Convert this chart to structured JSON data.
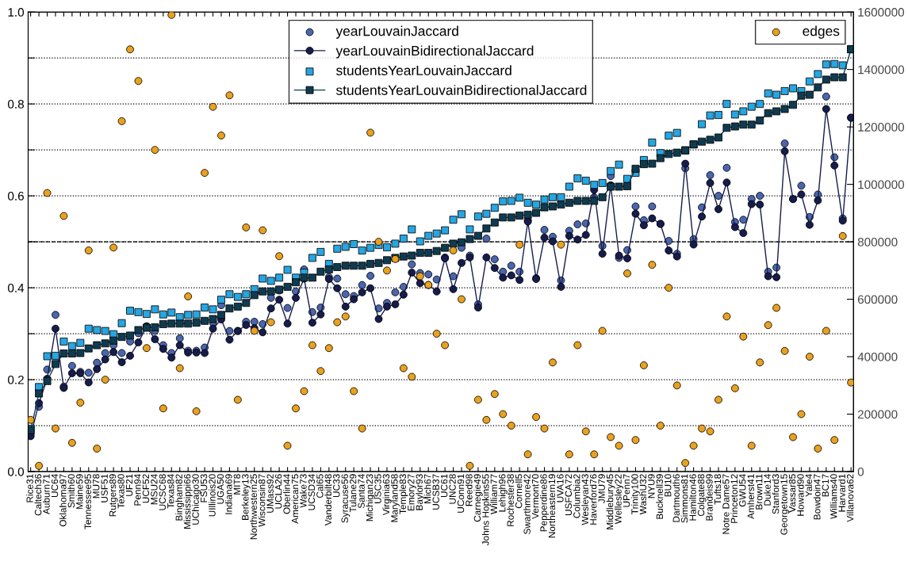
{
  "chart_data": {
    "type": "scatter",
    "categories": [
      "Rice31",
      "Caltech36",
      "Auburn71",
      "UC64",
      "Oklahoma97",
      "Smith60",
      "Maine59",
      "Tennessee95",
      "MU78",
      "USF51",
      "Rutgers89",
      "Texas80",
      "UF21",
      "Penn94",
      "UCF52",
      "MSU24",
      "UCSC68",
      "Texas84",
      "Bingham82",
      "Mississippi66",
      "UChicago30",
      "FSU53",
      "UIllinois20",
      "UGA50",
      "Indiana69",
      "MIT8",
      "Berkeley13",
      "Northwestern25",
      "Wisconsin87",
      "UMass92",
      "UCLA26",
      "Oberlin44",
      "American75",
      "Wake73",
      "UCSD34",
      "Cal65",
      "Vanderbilt48",
      "UC33",
      "Syracuse56",
      "Tulane29",
      "Santa74",
      "Michigan23",
      "USC35",
      "Virginia63",
      "Maryland58",
      "Temple83",
      "Emory27",
      "Baylor93",
      "Mich67",
      "UCSB37",
      "UC61",
      "UNC28",
      "UConn91",
      "Reed98",
      "Carnegie49",
      "Johns Hopkins55",
      "William77",
      "Lehigh96",
      "Rochester38",
      "Cornell5",
      "Swarthmore42",
      "Vermont70",
      "Pepperdine86",
      "Northeastern19",
      "UVA16",
      "USFCA72",
      "Columbia2",
      "Wesleyan43",
      "Haverford76",
      "JMU79",
      "Middlebury45",
      "Wellesley22",
      "UPenn7",
      "Trinity100",
      "WashU32",
      "NYU9",
      "Bucknell39",
      "BU10",
      "Dartmouth6",
      "Simmons81",
      "Hamilton46",
      "Colgate88",
      "Brandeis99",
      "Tufts18",
      "Notre Dame57",
      "Princeton12",
      "GWU54",
      "Amherst41",
      "Brown11",
      "Duke14",
      "Stanford3",
      "Georgetown15",
      "Vassar85",
      "Howard90",
      "Yale4",
      "Bowdoin47",
      "BC17",
      "Williams40",
      "Harvard1",
      "Villanova62"
    ],
    "ylim": [
      0,
      1
    ],
    "yticks": [
      {
        "value": 0,
        "label": "0.0"
      },
      {
        "value": 0.1,
        "label": null
      },
      {
        "value": 0.2,
        "label": "0.2"
      },
      {
        "value": 0.3,
        "label": null
      },
      {
        "value": 0.4,
        "label": "0.4"
      },
      {
        "value": 0.5,
        "label": null
      },
      {
        "value": 0.6,
        "label": "0.6"
      },
      {
        "value": 0.7,
        "label": null
      },
      {
        "value": 0.8,
        "label": "0.8"
      },
      {
        "value": 0.9,
        "label": null
      },
      {
        "value": 1,
        "label": "1.0"
      }
    ],
    "y2lim": [
      0,
      1600000
    ],
    "y2ticks": [
      0,
      200000,
      400000,
      600000,
      800000,
      1000000,
      1200000,
      1400000,
      1600000
    ],
    "grid": "y",
    "legend": "top",
    "ref_lines": [
      {
        "axis": "y",
        "value": 0.5,
        "color": "#000000",
        "line_style": "dashed"
      }
    ],
    "series": [
      {
        "name": "yearLouvainJaccard",
        "marker": "circle",
        "color": "#4a66ae",
        "values": [
          0.082,
          0.141,
          0.222,
          0.341,
          0.185,
          0.23,
          0.217,
          0.215,
          0.237,
          0.258,
          0.275,
          0.258,
          0.283,
          0.301,
          0.316,
          0.306,
          0.275,
          0.258,
          0.29,
          0.263,
          0.263,
          0.27,
          0.324,
          0.362,
          0.306,
          0.306,
          0.326,
          0.326,
          0.321,
          0.378,
          0.394,
          0.356,
          0.392,
          0.44,
          0.347,
          0.357,
          0.423,
          0.42,
          0.386,
          0.382,
          0.406,
          0.426,
          0.355,
          0.367,
          0.39,
          0.402,
          0.451,
          0.432,
          0.429,
          0.418,
          0.466,
          0.425,
          0.487,
          0.47,
          0.364,
          0.507,
          0.462,
          0.435,
          0.448,
          0.435,
          0.547,
          0.421,
          0.526,
          0.511,
          0.416,
          0.524,
          0.538,
          0.54,
          0.597,
          0.491,
          0.643,
          0.465,
          0.482,
          0.577,
          0.547,
          0.577,
          0.539,
          0.502,
          0.474,
          0.66,
          0.506,
          0.575,
          0.645,
          0.6,
          0.661,
          0.543,
          0.548,
          0.593,
          0.6,
          0.435,
          0.444,
          0.714,
          0.593,
          0.622,
          0.554,
          0.603,
          0.816,
          0.684,
          0.551,
          0.77
        ]
      },
      {
        "name": "yearLouvainBidirectionalJaccard",
        "type": "line",
        "marker": "circle",
        "color": "#161c4c",
        "values": [
          0.077,
          0.149,
          0.202,
          0.311,
          0.182,
          0.214,
          0.214,
          0.194,
          0.223,
          0.244,
          0.26,
          0.238,
          0.252,
          0.281,
          0.316,
          0.288,
          0.267,
          0.248,
          0.275,
          0.259,
          0.259,
          0.258,
          0.311,
          0.331,
          0.287,
          0.306,
          0.319,
          0.312,
          0.303,
          0.355,
          0.374,
          0.322,
          0.378,
          0.42,
          0.324,
          0.342,
          0.419,
          0.399,
          0.359,
          0.375,
          0.39,
          0.399,
          0.332,
          0.359,
          0.364,
          0.385,
          0.433,
          0.41,
          0.406,
          0.392,
          0.464,
          0.397,
          0.454,
          0.466,
          0.357,
          0.466,
          0.443,
          0.422,
          0.427,
          0.417,
          0.544,
          0.419,
          0.509,
          0.501,
          0.402,
          0.513,
          0.505,
          0.515,
          0.613,
          0.474,
          0.623,
          0.47,
          0.464,
          0.561,
          0.536,
          0.551,
          0.539,
          0.481,
          0.468,
          0.67,
          0.494,
          0.555,
          0.628,
          0.571,
          0.629,
          0.532,
          0.519,
          0.582,
          0.581,
          0.425,
          0.423,
          0.697,
          0.593,
          0.603,
          0.537,
          0.59,
          0.789,
          0.666,
          0.546,
          0.77
        ]
      },
      {
        "name": "studentsYearLouvainJaccard",
        "marker": "square",
        "color": "#26a6e2",
        "values": [
          0.093,
          0.184,
          0.251,
          0.252,
          0.283,
          0.273,
          0.28,
          0.311,
          0.308,
          0.306,
          0.299,
          0.323,
          0.35,
          0.347,
          0.343,
          0.353,
          0.342,
          0.346,
          0.336,
          0.341,
          0.342,
          0.357,
          0.353,
          0.374,
          0.386,
          0.38,
          0.386,
          0.397,
          0.42,
          0.415,
          0.422,
          0.439,
          0.422,
          0.433,
          0.465,
          0.478,
          0.452,
          0.485,
          0.489,
          0.495,
          0.481,
          0.487,
          0.493,
          0.488,
          0.496,
          0.507,
          0.527,
          0.501,
          0.513,
          0.518,
          0.525,
          0.548,
          0.56,
          0.527,
          0.555,
          0.561,
          0.574,
          0.588,
          0.589,
          0.596,
          0.585,
          0.581,
          0.592,
          0.597,
          0.597,
          0.62,
          0.638,
          0.633,
          0.624,
          0.628,
          0.654,
          0.668,
          0.637,
          0.65,
          0.678,
          0.716,
          0.693,
          0.731,
          0.737,
          0.699,
          0.712,
          0.756,
          0.775,
          0.776,
          0.8,
          0.777,
          0.784,
          0.794,
          0.8,
          0.823,
          0.82,
          0.828,
          0.834,
          0.828,
          0.849,
          0.865,
          0.886,
          0.887,
          0.884,
          0.919
        ]
      },
      {
        "name": "studentsYearLouvainBidirectionalJaccard",
        "type": "line",
        "marker": "square",
        "color": "#0e3b50",
        "values": [
          0.09,
          0.17,
          0.197,
          0.234,
          0.257,
          0.257,
          0.258,
          0.268,
          0.275,
          0.279,
          0.285,
          0.293,
          0.296,
          0.308,
          0.313,
          0.314,
          0.321,
          0.322,
          0.322,
          0.322,
          0.324,
          0.328,
          0.332,
          0.341,
          0.355,
          0.359,
          0.367,
          0.384,
          0.392,
          0.392,
          0.396,
          0.402,
          0.412,
          0.422,
          0.422,
          0.435,
          0.44,
          0.445,
          0.448,
          0.448,
          0.448,
          0.452,
          0.454,
          0.46,
          0.465,
          0.468,
          0.47,
          0.476,
          0.476,
          0.48,
          0.487,
          0.496,
          0.499,
          0.506,
          0.513,
          0.529,
          0.542,
          0.553,
          0.553,
          0.557,
          0.559,
          0.563,
          0.575,
          0.577,
          0.581,
          0.585,
          0.589,
          0.589,
          0.589,
          0.597,
          0.62,
          0.62,
          0.621,
          0.659,
          0.669,
          0.67,
          0.682,
          0.691,
          0.694,
          0.699,
          0.712,
          0.718,
          0.722,
          0.727,
          0.748,
          0.751,
          0.755,
          0.755,
          0.764,
          0.78,
          0.784,
          0.789,
          0.798,
          0.818,
          0.82,
          0.836,
          0.853,
          0.858,
          0.858,
          0.919
        ]
      },
      {
        "name": "edges",
        "marker": "circle",
        "axis": "y2",
        "color": "#e9a11f",
        "values": [
          180000,
          20000,
          970000,
          150000,
          890000,
          100000,
          240000,
          770000,
          80000,
          320000,
          780000,
          1220000,
          1470000,
          1360000,
          430000,
          1120000,
          220000,
          1590000,
          360000,
          610000,
          210000,
          1040000,
          1270000,
          1170000,
          1310000,
          250000,
          850000,
          490000,
          840000,
          520000,
          750000,
          90000,
          220000,
          280000,
          440000,
          350000,
          430000,
          520000,
          540000,
          280000,
          150000,
          1180000,
          800000,
          700000,
          740000,
          360000,
          330000,
          680000,
          650000,
          480000,
          440000,
          770000,
          600000,
          20000,
          250000,
          180000,
          270000,
          200000,
          160000,
          790000,
          60000,
          190000,
          150000,
          380000,
          790000,
          60000,
          440000,
          140000,
          60000,
          490000,
          120000,
          90000,
          690000,
          110000,
          370000,
          720000,
          160000,
          640000,
          300000,
          30000,
          90000,
          150000,
          140000,
          250000,
          540000,
          290000,
          470000,
          90000,
          380000,
          510000,
          570000,
          420000,
          120000,
          200000,
          400000,
          80000,
          490000,
          110000,
          820000,
          310000
        ]
      }
    ]
  }
}
